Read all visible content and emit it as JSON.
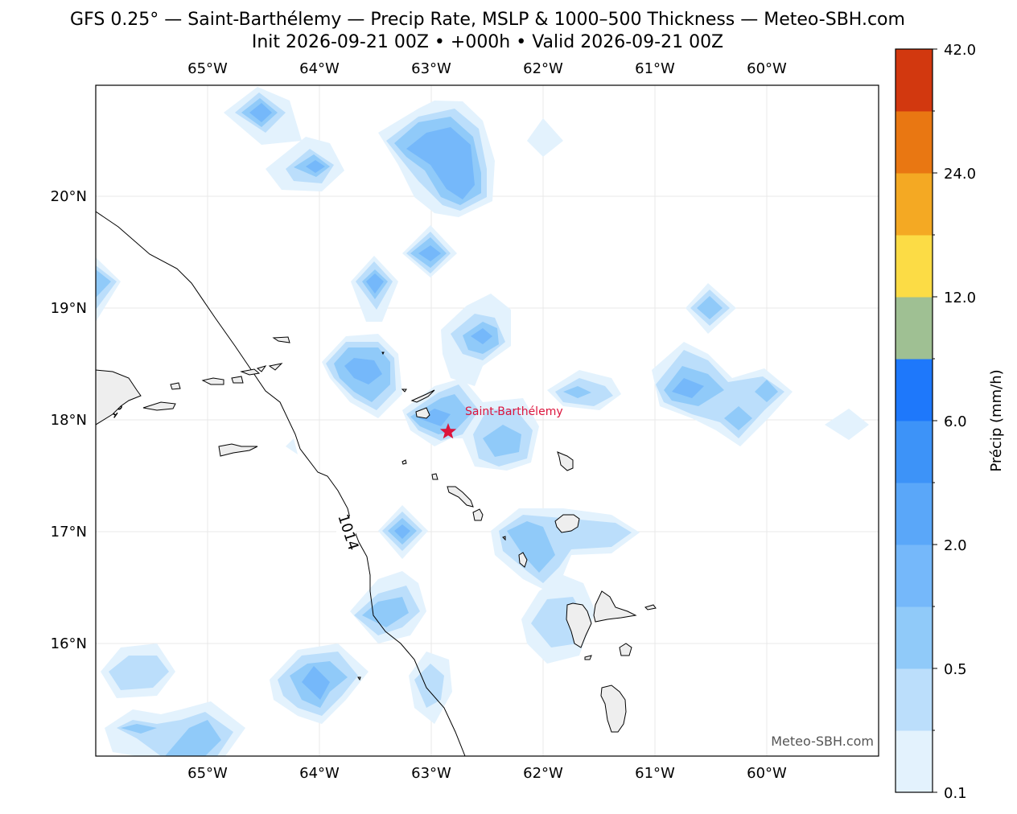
{
  "title": {
    "line1": "GFS 0.25° — Saint-Barthélemy — Precip Rate, MSLP & 1000–500 Thickness — Meteo-SBH.com",
    "line2": "Init 2026-09-21 00Z • +000h • Valid 2026-09-21 00Z"
  },
  "map": {
    "lon_range": [
      -66.0,
      -59.0
    ],
    "lat_range": [
      15.0,
      21.0
    ],
    "lon_ticks": [
      "65°W",
      "64°W",
      "63°W",
      "62°W",
      "61°W",
      "60°W"
    ],
    "lat_ticks": [
      "20°N",
      "19°N",
      "18°N",
      "17°N",
      "16°N"
    ],
    "grid": true,
    "marker": {
      "label": "Saint-Barthélemy",
      "lon": -62.85,
      "lat": 17.9,
      "color": "#dc143c"
    },
    "isobar_label": "1014",
    "watermark": "Meteo-SBH.com",
    "land_color": "#eeeeee"
  },
  "colorbar": {
    "label": "Précip (mm/h)",
    "tick_labels": [
      "0.1",
      "0.5",
      "2.0",
      "6.0",
      "12.0",
      "24.0",
      "42.0"
    ],
    "colors": [
      "#e3f2fd",
      "#bbdefb",
      "#90caf9",
      "#75b8fa",
      "#5aa7f9",
      "#3d93f8",
      "#1e78fb",
      "#9fc093",
      "#fcdc45",
      "#f4a923",
      "#e97712",
      "#d2380f"
    ]
  }
}
